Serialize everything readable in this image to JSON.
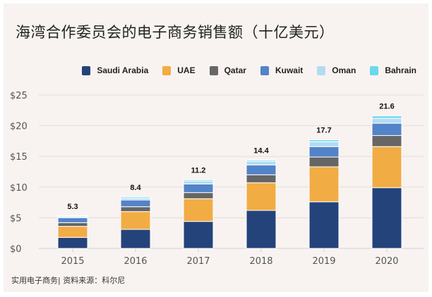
{
  "title": "海湾合作委员会的电子商务销售额（十亿美元）",
  "source": "实用电子商务| 资料来源：科尔尼",
  "chart_data": {
    "type": "bar",
    "stacked": true,
    "title": "海湾合作委员会的电子商务销售额（十亿美元）",
    "xlabel": "",
    "ylabel": "",
    "categories": [
      "2015",
      "2016",
      "2017",
      "2018",
      "2019",
      "2020"
    ],
    "ylim": [
      0,
      25
    ],
    "yticks": [
      0,
      5,
      10,
      15,
      20,
      25
    ],
    "ytick_labels": [
      "$0",
      "$5",
      "$10",
      "$15",
      "$20",
      "$25"
    ],
    "grid": true,
    "legend_position": "top-right",
    "totals": [
      "5.3",
      "8.4",
      "11.2",
      "14.4",
      "17.7",
      "21.6"
    ],
    "series": [
      {
        "name": "Saudi Arabia",
        "color": "#24437b",
        "values": [
          1.8,
          3.1,
          4.4,
          6.2,
          7.6,
          9.9
        ]
      },
      {
        "name": "UAE",
        "color": "#f2ac44",
        "values": [
          1.8,
          2.9,
          3.7,
          4.5,
          5.7,
          6.7
        ]
      },
      {
        "name": "Qatar",
        "color": "#666666",
        "values": [
          0.6,
          0.8,
          1.0,
          1.3,
          1.6,
          1.8
        ]
      },
      {
        "name": "Kuwait",
        "color": "#5383c8",
        "values": [
          0.8,
          1.1,
          1.4,
          1.6,
          1.7,
          2.0
        ]
      },
      {
        "name": "Oman",
        "color": "#b4dbf1",
        "values": [
          0.2,
          0.3,
          0.5,
          0.6,
          0.8,
          0.8
        ]
      },
      {
        "name": "Bahrain",
        "color": "#6ad9ec",
        "values": [
          0.1,
          0.2,
          0.2,
          0.2,
          0.3,
          0.4
        ]
      }
    ]
  }
}
